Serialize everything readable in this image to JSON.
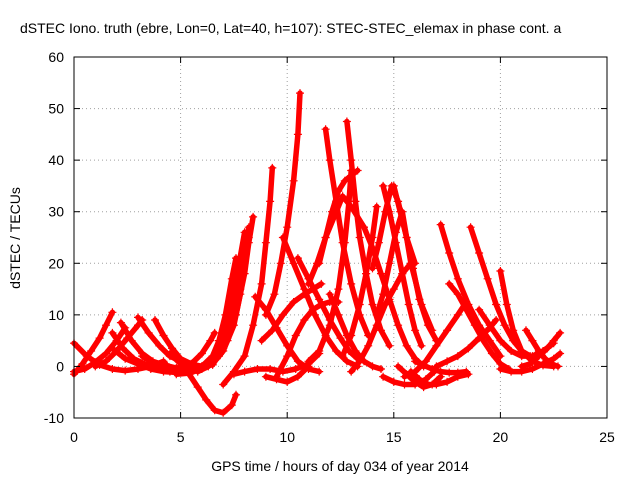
{
  "chart_data": {
    "type": "scatter",
    "title": "dSTEC Iono. truth (ebre, Lon=0, Lat=40, h=107): STEC-STEC_elemax in phase cont. a",
    "xlabel": "GPS time / hours of day 034 of year 2014",
    "ylabel": "dSTEC  / TECUs",
    "xlim": [
      0,
      25
    ],
    "ylim": [
      -10,
      60
    ],
    "xticks": [
      "0",
      "5",
      "10",
      "15",
      "20",
      "25"
    ],
    "yticks": [
      "-10",
      "0",
      "10",
      "20",
      "30",
      "40",
      "50",
      "60"
    ],
    "grid": true,
    "legend": "none",
    "marker": "plus",
    "color": "#ff0000",
    "series": [
      {
        "x": [
          0.0,
          0.4,
          0.8,
          1.2,
          1.5,
          1.8
        ],
        "y": [
          -1.5,
          0.5,
          3,
          5.5,
          8,
          10.5
        ]
      },
      {
        "x": [
          0.0,
          0.6,
          1.2,
          1.8,
          2.4,
          3.0,
          3.6,
          4.2
        ],
        "y": [
          4.5,
          2,
          0.3,
          -0.5,
          -0.8,
          -0.5,
          0,
          1
        ]
      },
      {
        "x": [
          0.0,
          0.5,
          1.0,
          1.5,
          2.0,
          2.4
        ],
        "y": [
          -1,
          -0.5,
          0.8,
          2.5,
          5,
          7.5
        ]
      },
      {
        "x": [
          1.0,
          1.5,
          2.0,
          2.5,
          3.0,
          3.2
        ],
        "y": [
          0,
          1,
          3,
          5.5,
          8,
          9
        ]
      },
      {
        "x": [
          1.8,
          2.3,
          2.8,
          3.3,
          3.8,
          4.3
        ],
        "y": [
          6.5,
          3.5,
          1.5,
          0.5,
          0,
          0.5
        ]
      },
      {
        "x": [
          2.2,
          2.7,
          3.2,
          3.7,
          4.2,
          4.8,
          5.3
        ],
        "y": [
          8.5,
          5,
          2.5,
          1,
          0.3,
          -0.3,
          0
        ]
      },
      {
        "x": [
          1.8,
          2.4,
          3.0,
          3.6,
          4.2,
          5.0,
          5.6
        ],
        "y": [
          3.5,
          1.5,
          0.5,
          -0.5,
          -1,
          -1.2,
          -0.8
        ]
      },
      {
        "x": [
          3.0,
          3.5,
          4.0,
          4.5,
          5.0,
          5.5,
          6.0,
          6.5
        ],
        "y": [
          9.5,
          6.5,
          4,
          2,
          1,
          0.3,
          0,
          0.3
        ]
      },
      {
        "x": [
          3.8,
          4.2,
          4.6,
          5.0,
          5.5,
          6.0
        ],
        "y": [
          9,
          6,
          3.5,
          1.5,
          0.5,
          0
        ]
      },
      {
        "x": [
          3.2,
          3.8,
          4.4,
          5.0,
          5.6,
          6.2,
          6.8,
          7.2
        ],
        "y": [
          2,
          0.5,
          -0.5,
          -0.8,
          -0.5,
          0.5,
          2.5,
          5.5
        ]
      },
      {
        "x": [
          4.5,
          5.0,
          5.5,
          6.0,
          6.4,
          6.6
        ],
        "y": [
          -1,
          -0.5,
          0.5,
          2.5,
          5,
          6.5
        ]
      },
      {
        "x": [
          4.5,
          5.0,
          5.4,
          5.8,
          6.2,
          6.6,
          7.0,
          7.4,
          7.6
        ],
        "y": [
          2.5,
          0.5,
          -1.5,
          -4,
          -6.5,
          -8.5,
          -9,
          -7.5,
          -5.5
        ]
      },
      {
        "x": [
          4.8,
          5.4,
          6.0,
          6.5,
          7.0,
          7.3,
          7.6,
          7.8
        ],
        "y": [
          -1.5,
          -1.3,
          -0.5,
          1,
          4,
          8,
          14,
          20
        ]
      },
      {
        "x": [
          5.5,
          6.0,
          6.5,
          6.8,
          7.1,
          7.4,
          7.6
        ],
        "y": [
          -0.5,
          0,
          2,
          5,
          10,
          17,
          21
        ]
      },
      {
        "x": [
          5.8,
          6.3,
          6.8,
          7.1,
          7.4,
          7.7,
          8.0
        ],
        "y": [
          -1,
          0,
          2,
          6,
          12,
          19,
          26
        ]
      },
      {
        "x": [
          6.0,
          6.5,
          7.0,
          7.4,
          7.8,
          8.0,
          8.2
        ],
        "y": [
          -0.5,
          0.5,
          3.5,
          8,
          15,
          22,
          27
        ]
      },
      {
        "x": [
          6.2,
          6.7,
          7.2,
          7.6,
          8.0,
          8.2,
          8.4
        ],
        "y": [
          0,
          1.5,
          5,
          10,
          18,
          24,
          29
        ]
      },
      {
        "x": [
          6.5,
          7.0,
          7.5,
          7.8,
          8.0,
          8.2
        ],
        "y": [
          0.5,
          3,
          8,
          14,
          20,
          25
        ]
      },
      {
        "x": [
          7.0,
          7.5,
          8.0,
          8.4,
          8.8,
          9.0,
          9.2,
          9.3
        ],
        "y": [
          -3.5,
          -1,
          2,
          8,
          16,
          24,
          32,
          38.5
        ]
      },
      {
        "x": [
          7.5,
          8.0,
          8.6,
          9.2,
          9.8,
          10.4,
          11.0,
          11.5
        ],
        "y": [
          -1.5,
          -1,
          -0.5,
          -0.5,
          -1,
          -0.5,
          0.5,
          2.5
        ]
      },
      {
        "x": [
          8.5,
          9.0,
          9.5,
          10.0,
          10.5,
          11.0,
          11.5
        ],
        "y": [
          13.5,
          11,
          7.5,
          4,
          1,
          -0.5,
          -1
        ]
      },
      {
        "x": [
          9.0,
          9.4,
          9.7,
          10.0,
          10.3,
          10.5,
          10.6
        ],
        "y": [
          10,
          14,
          20,
          27,
          36,
          45,
          53
        ]
      },
      {
        "x": [
          8.8,
          9.3,
          9.8,
          10.3,
          10.8,
          11.2,
          11.6
        ],
        "y": [
          5,
          7,
          10,
          12.5,
          14,
          15,
          16
        ]
      },
      {
        "x": [
          9.5,
          10.0,
          10.4,
          10.8,
          11.2,
          11.6,
          12.0,
          12.4
        ],
        "y": [
          -2,
          2,
          6,
          9,
          11,
          12,
          12.5,
          12.5
        ]
      },
      {
        "x": [
          9.0,
          9.5,
          10.0,
          10.5,
          11.0
        ],
        "y": [
          -2,
          -2.5,
          -3,
          -2,
          0
        ]
      },
      {
        "x": [
          9.8,
          10.3,
          10.8,
          11.3,
          11.8,
          12.3,
          12.8,
          13.3
        ],
        "y": [
          25,
          20,
          15,
          10,
          6,
          3,
          1,
          0
        ]
      },
      {
        "x": [
          10.5,
          11.0,
          11.5,
          12.0,
          12.5,
          12.9,
          13.3
        ],
        "y": [
          21,
          17,
          13,
          9,
          5.5,
          3,
          1.5
        ]
      },
      {
        "x": [
          11.0,
          11.5,
          12.0,
          12.4,
          12.7,
          12.9,
          13.0
        ],
        "y": [
          1,
          3,
          8,
          15,
          24,
          32,
          38
        ]
      },
      {
        "x": [
          11.5,
          11.8,
          12.1,
          12.4,
          12.7,
          13.0,
          13.3
        ],
        "y": [
          20,
          25,
          30,
          34,
          36,
          37,
          38
        ]
      },
      {
        "x": [
          11.8,
          12.0,
          12.3,
          12.6,
          13.0,
          13.4,
          13.8
        ],
        "y": [
          46,
          40,
          32,
          24,
          16,
          10,
          6
        ]
      },
      {
        "x": [
          11.0,
          11.4,
          11.8,
          12.2,
          12.6,
          13.0,
          13.6
        ],
        "y": [
          16,
          20,
          25,
          29,
          33,
          31,
          27
        ]
      },
      {
        "x": [
          12.0,
          12.4,
          12.8,
          13.2,
          13.6,
          14.0,
          14.4
        ],
        "y": [
          14,
          10,
          6,
          3,
          1,
          0,
          -0.5
        ]
      },
      {
        "x": [
          12.8,
          13.0,
          13.2,
          13.4,
          13.7,
          14.0,
          14.4,
          14.8
        ],
        "y": [
          47.5,
          40,
          32,
          25,
          18,
          12,
          7,
          4
        ]
      },
      {
        "x": [
          12.6,
          13.0,
          13.4,
          13.7,
          14.0,
          14.2
        ],
        "y": [
          2,
          6,
          12,
          18,
          25,
          31
        ]
      },
      {
        "x": [
          13.0,
          13.4,
          13.8,
          14.2,
          14.6,
          15.0,
          15.4,
          15.8
        ],
        "y": [
          -1,
          1,
          4,
          8,
          12,
          15,
          18,
          20
        ]
      },
      {
        "x": [
          13.6,
          14.0,
          14.4,
          14.8,
          15.2,
          15.6,
          16.0,
          16.4
        ],
        "y": [
          27,
          23,
          18,
          13,
          8,
          4,
          1.5,
          0
        ]
      },
      {
        "x": [
          14.0,
          14.3,
          14.6,
          14.9,
          15.2,
          15.6,
          16.0
        ],
        "y": [
          19,
          24,
          30,
          35,
          32,
          25,
          20
        ]
      },
      {
        "x": [
          14.2,
          14.5,
          14.8,
          15.1,
          15.4,
          15.8,
          16.3,
          16.8
        ],
        "y": [
          10,
          14,
          20,
          26,
          30,
          20,
          12,
          7
        ]
      },
      {
        "x": [
          14.5,
          14.8,
          15.1,
          15.4,
          15.7,
          16.0,
          16.3
        ],
        "y": [
          35,
          30,
          24,
          18,
          12,
          7,
          4
        ]
      },
      {
        "x": [
          15.0,
          15.3,
          15.6,
          15.9,
          16.2,
          16.6,
          17.0
        ],
        "y": [
          35,
          30,
          25,
          19,
          13,
          8,
          5
        ]
      },
      {
        "x": [
          14.5,
          15.0,
          15.5,
          16.0,
          16.5,
          16.9
        ],
        "y": [
          -2,
          -3,
          -3.5,
          -3.5,
          -2.5,
          -1
        ]
      },
      {
        "x": [
          15.2,
          15.6,
          16.0,
          16.4,
          16.8,
          17.2
        ],
        "y": [
          0,
          -1.5,
          -3,
          -4,
          -3.5,
          -2
        ]
      },
      {
        "x": [
          15.8,
          16.2,
          16.6,
          17.0,
          17.5,
          18.0,
          18.5
        ],
        "y": [
          -1,
          -2.5,
          -3.5,
          -3.5,
          -3,
          -2,
          -1.5
        ]
      },
      {
        "x": [
          16.0,
          16.4,
          16.8,
          17.2,
          17.6,
          18.0,
          18.4
        ],
        "y": [
          1,
          0.2,
          -0.5,
          -1,
          -1.2,
          -1.2,
          -1
        ]
      },
      {
        "x": [
          15.5,
          16.0,
          16.5,
          17.0,
          17.5,
          18.0,
          18.4
        ],
        "y": [
          -2,
          -1,
          1,
          4,
          7,
          10,
          12.5
        ]
      },
      {
        "x": [
          17.2,
          17.6,
          18.0,
          18.5,
          19.0,
          19.5,
          20.0
        ],
        "y": [
          27.5,
          22,
          17,
          12,
          8,
          5,
          2
        ]
      },
      {
        "x": [
          17.6,
          18.0,
          18.4,
          18.8,
          19.2,
          19.6,
          20.0,
          20.4
        ],
        "y": [
          16,
          14,
          11,
          8,
          5,
          2.5,
          0.5,
          -0.5
        ]
      },
      {
        "x": [
          17.0,
          17.5,
          18.0,
          18.5,
          19.0,
          19.5,
          19.8
        ],
        "y": [
          0,
          1,
          2,
          3.5,
          5.5,
          7.5,
          9
        ]
      },
      {
        "x": [
          18.6,
          19.0,
          19.4,
          19.8,
          20.2,
          20.6,
          21.0,
          21.4
        ],
        "y": [
          27,
          22,
          17,
          12,
          8,
          5,
          3,
          2
        ]
      },
      {
        "x": [
          19.0,
          19.5,
          20.0,
          20.5,
          21.0,
          21.5,
          22.0,
          22.5
        ],
        "y": [
          11,
          8,
          5,
          3,
          2,
          2,
          3,
          4.5
        ]
      },
      {
        "x": [
          20.0,
          20.3,
          20.6,
          21.0,
          21.5,
          22.0,
          22.5
        ],
        "y": [
          18.5,
          12,
          7,
          3,
          1,
          0.2,
          0
        ]
      },
      {
        "x": [
          20.0,
          20.5,
          21.0,
          21.5,
          22.0,
          22.5,
          22.8
        ],
        "y": [
          -0.5,
          -1,
          -1,
          -0.5,
          0.5,
          1.5,
          2.5
        ]
      },
      {
        "x": [
          21.0,
          21.4,
          21.8,
          22.2,
          22.5,
          22.8
        ],
        "y": [
          0,
          0.5,
          2,
          3.5,
          5,
          6.5
        ]
      },
      {
        "x": [
          21.2,
          21.5,
          21.8,
          22.1,
          22.4,
          22.7
        ],
        "y": [
          7,
          5,
          3,
          1.5,
          0.5,
          0
        ]
      }
    ]
  }
}
